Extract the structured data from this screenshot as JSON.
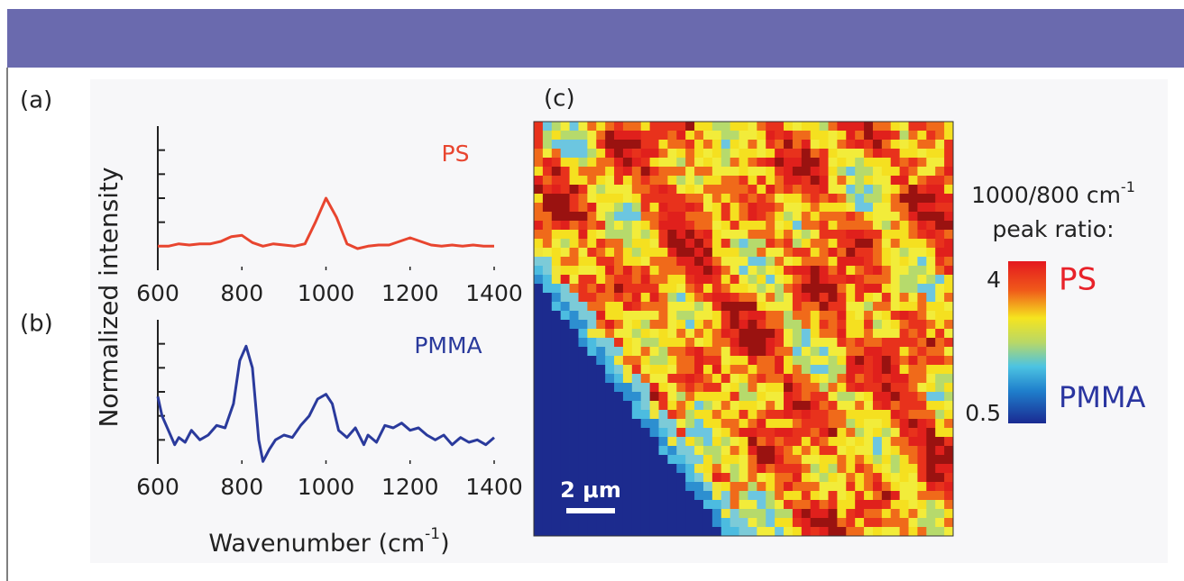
{
  "chart_data": [
    {
      "type": "line",
      "panel_label": "(a)",
      "ylabel": "Normalized intensity",
      "x": [
        600,
        625,
        650,
        675,
        700,
        725,
        750,
        775,
        800,
        825,
        850,
        875,
        900,
        925,
        950,
        975,
        1000,
        1025,
        1050,
        1075,
        1100,
        1125,
        1150,
        1175,
        1200,
        1225,
        1250,
        1275,
        1300,
        1325,
        1350,
        1375,
        1400
      ],
      "series": [
        {
          "name": "PS",
          "color": "#e8452f",
          "values": [
            1.0,
            1.0,
            1.1,
            1.05,
            1.1,
            1.1,
            1.2,
            1.4,
            1.45,
            1.15,
            1.0,
            1.1,
            1.05,
            1.0,
            1.1,
            2.0,
            3.0,
            2.2,
            1.1,
            0.9,
            1.0,
            1.05,
            1.05,
            1.2,
            1.35,
            1.2,
            1.05,
            1.0,
            1.05,
            1.0,
            1.05,
            1.0,
            1.0
          ]
        }
      ],
      "xlim": [
        600,
        1400
      ],
      "xticks": [
        600,
        800,
        1000,
        1200,
        1400
      ],
      "ylim": [
        0,
        6
      ],
      "yticks": [
        1,
        2,
        3,
        4,
        5
      ]
    },
    {
      "type": "line",
      "panel_label": "(b)",
      "xlabel": "Wavenumber (cm",
      "xlabel_sup": "-1",
      "xlabel_end": ")",
      "x": [
        600,
        610,
        625,
        640,
        650,
        665,
        680,
        700,
        720,
        740,
        760,
        780,
        795,
        810,
        825,
        840,
        850,
        865,
        880,
        900,
        920,
        940,
        960,
        980,
        1000,
        1015,
        1030,
        1050,
        1070,
        1090,
        1100,
        1120,
        1140,
        1160,
        1180,
        1200,
        1220,
        1240,
        1260,
        1280,
        1300,
        1320,
        1340,
        1360,
        1380,
        1400
      ],
      "series": [
        {
          "name": "PMMA",
          "color": "#2a3a9c",
          "values": [
            2.8,
            2.0,
            1.4,
            0.8,
            1.1,
            0.9,
            1.4,
            1.0,
            1.2,
            1.6,
            1.5,
            2.5,
            4.3,
            4.9,
            4.0,
            1.0,
            0.1,
            0.6,
            1.0,
            1.2,
            1.1,
            1.6,
            2.0,
            2.7,
            2.9,
            2.5,
            1.4,
            1.1,
            1.5,
            0.8,
            1.2,
            0.9,
            1.6,
            1.5,
            1.7,
            1.4,
            1.5,
            1.2,
            1.0,
            1.2,
            0.8,
            1.1,
            0.9,
            1.0,
            0.8,
            1.1
          ]
        }
      ],
      "xlim": [
        600,
        1400
      ],
      "xticks": [
        600,
        800,
        1000,
        1200,
        1400
      ],
      "ylim": [
        0,
        6
      ],
      "yticks": [
        1,
        2,
        3,
        4,
        5
      ]
    },
    {
      "type": "heatmap",
      "panel_label": "(c)",
      "scale_bar_label": "2 μm",
      "colorbar_title": "1000/800 cm",
      "colorbar_title_sup": "-1",
      "colorbar_subtitle": "peak ratio:",
      "zlim": [
        0.5,
        4
      ],
      "colorbar_ticks": [
        4,
        0.5
      ],
      "end_labels": [
        {
          "label": "PS",
          "color": "#e8222a"
        },
        {
          "label": "PMMA",
          "color": "#2a35a0"
        }
      ]
    }
  ]
}
